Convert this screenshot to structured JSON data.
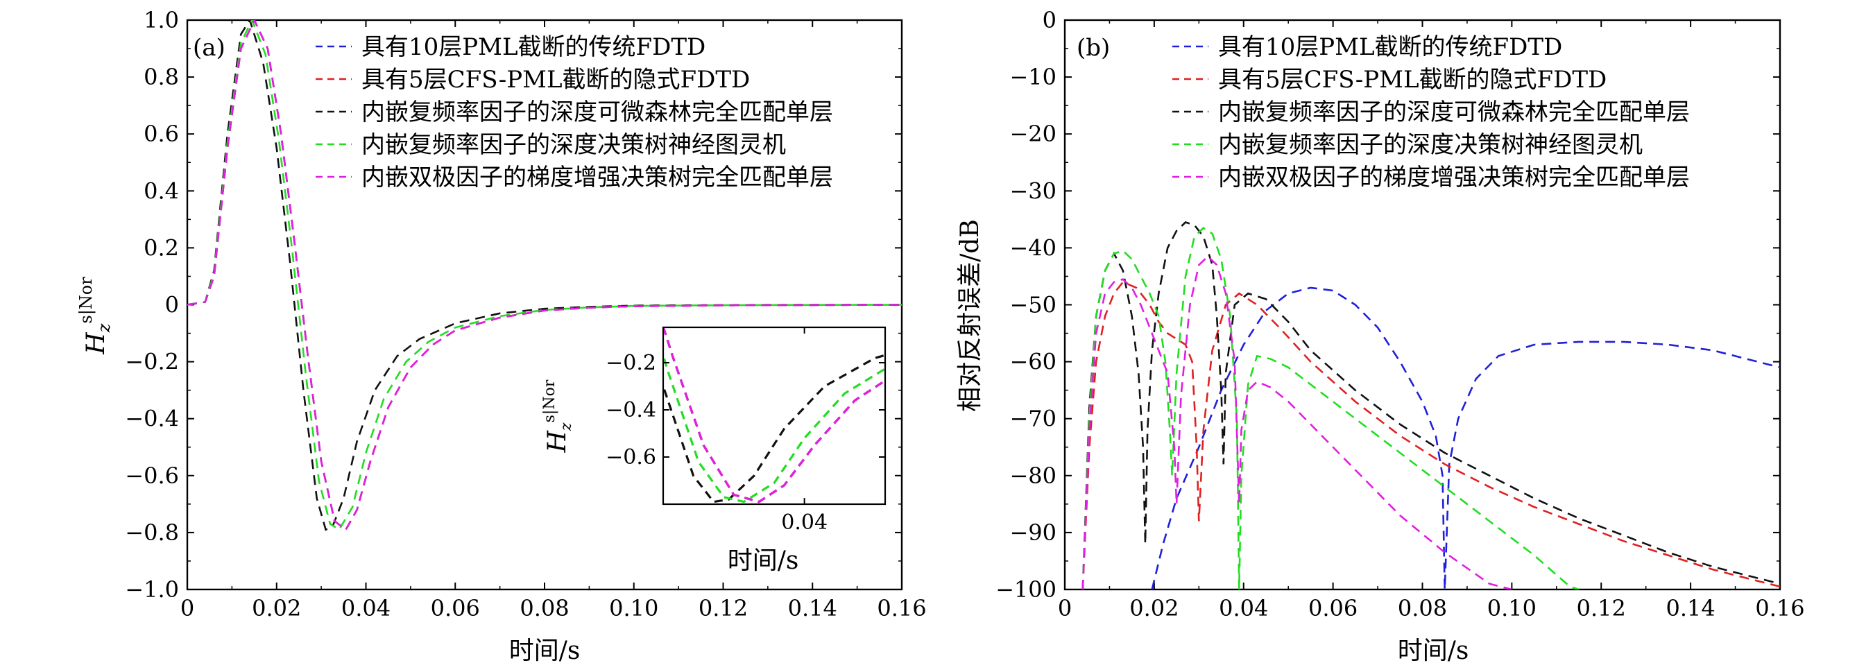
{
  "chart_data": [
    {
      "type": "line",
      "panel_label": "(a)",
      "xlabel": "时间/s",
      "ylabel": {
        "base": "H",
        "sub": "z",
        "sup": "s|Nor"
      },
      "xlim": [
        0,
        0.16
      ],
      "ylim": [
        -1.0,
        1.0
      ],
      "xticks": [
        0,
        0.02,
        0.04,
        0.06,
        0.08,
        0.1,
        0.12,
        0.14,
        0.16
      ],
      "xtick_labels": [
        "0",
        "0.02",
        "0.04",
        "0.06",
        "0.08",
        "0.10",
        "0.12",
        "0.14",
        "0.16"
      ],
      "yticks": [
        -1.0,
        -0.8,
        -0.6,
        -0.4,
        -0.2,
        0,
        0.2,
        0.4,
        0.6,
        0.8,
        1.0
      ],
      "ytick_labels": [
        "−1.0",
        "−0.8",
        "−0.6",
        "−0.4",
        "−0.2",
        "0",
        "0.2",
        "0.4",
        "0.6",
        "0.8",
        "1.0"
      ],
      "legend_position": "top-right",
      "series": [
        {
          "name": "具有10层PML截断的传统FDTD",
          "color": "#1f1fdc",
          "x": [
            0,
            0.004,
            0.006,
            0.009,
            0.012,
            0.015,
            0.018,
            0.021,
            0.024,
            0.027,
            0.03,
            0.033,
            0.0355,
            0.038,
            0.041,
            0.045,
            0.05,
            0.055,
            0.06,
            0.07,
            0.08,
            0.09,
            0.1,
            0.12,
            0.14,
            0.16
          ],
          "y": [
            0,
            0.01,
            0.1,
            0.55,
            0.9,
            1.0,
            0.9,
            0.6,
            0.22,
            -0.18,
            -0.55,
            -0.76,
            -0.79,
            -0.72,
            -0.55,
            -0.36,
            -0.22,
            -0.14,
            -0.09,
            -0.045,
            -0.02,
            -0.01,
            -0.005,
            -0.002,
            -0.001,
            0
          ]
        },
        {
          "name": "具有5层CFS-PML截断的隐式FDTD",
          "color": "#e02020",
          "x": [
            0,
            0.004,
            0.006,
            0.009,
            0.012,
            0.015,
            0.018,
            0.021,
            0.024,
            0.027,
            0.03,
            0.033,
            0.0355,
            0.038,
            0.041,
            0.045,
            0.05,
            0.055,
            0.06,
            0.07,
            0.08,
            0.09,
            0.1,
            0.12,
            0.14,
            0.16
          ],
          "y": [
            0,
            0.01,
            0.1,
            0.55,
            0.9,
            1.0,
            0.9,
            0.6,
            0.22,
            -0.18,
            -0.55,
            -0.76,
            -0.79,
            -0.72,
            -0.55,
            -0.36,
            -0.22,
            -0.14,
            -0.09,
            -0.045,
            -0.02,
            -0.01,
            -0.005,
            -0.002,
            -0.001,
            0
          ]
        },
        {
          "name": "内嵌复频率因子的深度可微森林完全匹配单层",
          "color": "#111111",
          "x": [
            0,
            0.004,
            0.006,
            0.009,
            0.012,
            0.014,
            0.017,
            0.02,
            0.023,
            0.026,
            0.029,
            0.031,
            0.0325,
            0.035,
            0.038,
            0.042,
            0.047,
            0.052,
            0.06,
            0.07,
            0.08,
            0.09,
            0.1,
            0.12,
            0.14,
            0.16
          ],
          "y": [
            0,
            0.01,
            0.12,
            0.6,
            0.95,
            1.0,
            0.85,
            0.55,
            0.15,
            -0.3,
            -0.68,
            -0.79,
            -0.78,
            -0.68,
            -0.48,
            -0.3,
            -0.18,
            -0.12,
            -0.065,
            -0.03,
            -0.014,
            -0.007,
            -0.003,
            -0.001,
            0,
            0
          ]
        },
        {
          "name": "内嵌复频率因子的深度决策树神经图灵机",
          "color": "#22dd22",
          "x": [
            0,
            0.004,
            0.006,
            0.009,
            0.012,
            0.0145,
            0.0175,
            0.0205,
            0.0235,
            0.0265,
            0.0295,
            0.032,
            0.034,
            0.037,
            0.04,
            0.044,
            0.049,
            0.054,
            0.06,
            0.07,
            0.08,
            0.09,
            0.1,
            0.12,
            0.14,
            0.16
          ],
          "y": [
            0,
            0.01,
            0.11,
            0.57,
            0.92,
            1.0,
            0.88,
            0.58,
            0.19,
            -0.24,
            -0.62,
            -0.77,
            -0.79,
            -0.71,
            -0.52,
            -0.33,
            -0.2,
            -0.13,
            -0.08,
            -0.04,
            -0.018,
            -0.009,
            -0.004,
            -0.0015,
            -0.0005,
            0
          ]
        },
        {
          "name": "内嵌双极因子的梯度增强决策树完全匹配单层",
          "color": "#e020e0",
          "x": [
            0,
            0.004,
            0.006,
            0.009,
            0.012,
            0.015,
            0.018,
            0.021,
            0.024,
            0.027,
            0.03,
            0.033,
            0.0355,
            0.038,
            0.041,
            0.045,
            0.05,
            0.055,
            0.06,
            0.07,
            0.08,
            0.09,
            0.1,
            0.12,
            0.14,
            0.16
          ],
          "y": [
            0,
            0.01,
            0.1,
            0.55,
            0.9,
            1.0,
            0.9,
            0.6,
            0.22,
            -0.18,
            -0.55,
            -0.76,
            -0.79,
            -0.72,
            -0.55,
            -0.36,
            -0.22,
            -0.14,
            -0.09,
            -0.045,
            -0.02,
            -0.01,
            -0.005,
            -0.002,
            -0.001,
            0
          ]
        }
      ],
      "inset": {
        "xlim": [
          0.026,
          0.048
        ],
        "ylim": [
          -0.8,
          -0.05
        ],
        "xticks": [
          0.04
        ],
        "xtick_labels": [
          "0.04"
        ],
        "yticks": [
          -0.2,
          -0.4,
          -0.6
        ],
        "ytick_labels": [
          "−0.2",
          "−0.4",
          "−0.6"
        ],
        "xlabel": "时间/s",
        "ylabel": {
          "base": "H",
          "sub": "z",
          "sup": "s|Nor"
        }
      }
    },
    {
      "type": "line",
      "panel_label": "(b)",
      "xlabel": "时间/s",
      "ylabel": "相对反射误差/dB",
      "xlim": [
        0,
        0.16
      ],
      "ylim": [
        -100,
        0
      ],
      "xticks": [
        0,
        0.02,
        0.04,
        0.06,
        0.08,
        0.1,
        0.12,
        0.14,
        0.16
      ],
      "xtick_labels": [
        "0",
        "0.02",
        "0.04",
        "0.06",
        "0.08",
        "0.10",
        "0.12",
        "0.14",
        "0.16"
      ],
      "yticks": [
        -100,
        -90,
        -80,
        -70,
        -60,
        -50,
        -40,
        -30,
        -20,
        -10,
        0
      ],
      "ytick_labels": [
        "−100",
        "−90",
        "−80",
        "−70",
        "−60",
        "−50",
        "−40",
        "−30",
        "−20",
        "−10",
        "0"
      ],
      "legend_position": "top-right",
      "series": [
        {
          "name": "具有10层PML截断的传统FDTD",
          "color": "#1f1fdc",
          "x": [
            0.0195,
            0.022,
            0.025,
            0.03,
            0.035,
            0.04,
            0.045,
            0.05,
            0.055,
            0.06,
            0.065,
            0.07,
            0.075,
            0.08,
            0.083,
            0.0845,
            0.085,
            0.086,
            0.088,
            0.092,
            0.097,
            0.105,
            0.115,
            0.125,
            0.135,
            0.145,
            0.155,
            0.16
          ],
          "y": [
            -100,
            -92,
            -84,
            -75,
            -65,
            -57,
            -51,
            -48,
            -47,
            -47.5,
            -50,
            -54,
            -60,
            -67,
            -73,
            -80,
            -100,
            -78,
            -70,
            -63,
            -59,
            -57,
            -56.5,
            -56.5,
            -57,
            -58,
            -60,
            -61
          ]
        },
        {
          "name": "具有5层CFS-PML截断的隐式FDTD",
          "color": "#e02020",
          "x": [
            0.004,
            0.0055,
            0.007,
            0.009,
            0.011,
            0.013,
            0.016,
            0.019,
            0.021,
            0.023,
            0.025,
            0.027,
            0.0285,
            0.0295,
            0.03,
            0.031,
            0.033,
            0.036,
            0.039,
            0.043,
            0.048,
            0.055,
            0.065,
            0.075,
            0.085,
            0.095,
            0.105,
            0.115,
            0.125,
            0.135,
            0.145,
            0.155,
            0.16
          ],
          "y": [
            -100,
            -75,
            -60,
            -52,
            -48,
            -46,
            -47,
            -50,
            -53,
            -55,
            -56,
            -57,
            -60,
            -75,
            -88,
            -72,
            -58,
            -50,
            -48,
            -50,
            -54,
            -60,
            -67,
            -73,
            -78,
            -82,
            -85.5,
            -88.5,
            -91.5,
            -94,
            -96.5,
            -98.5,
            -99.5
          ]
        },
        {
          "name": "内嵌复频率因子的深度可微森林完全匹配单层",
          "color": "#111111",
          "x": [
            0.004,
            0.0055,
            0.007,
            0.009,
            0.011,
            0.013,
            0.015,
            0.0165,
            0.0175,
            0.018,
            0.0185,
            0.0195,
            0.021,
            0.023,
            0.025,
            0.027,
            0.029,
            0.031,
            0.033,
            0.034,
            0.035,
            0.0355,
            0.036,
            0.038,
            0.041,
            0.045,
            0.05,
            0.055,
            0.065,
            0.075,
            0.085,
            0.095,
            0.105,
            0.115,
            0.125,
            0.135,
            0.145,
            0.155,
            0.16
          ],
          "y": [
            -100,
            -68,
            -52,
            -44,
            -41,
            -44,
            -52,
            -62,
            -75,
            -92,
            -72,
            -58,
            -48,
            -40,
            -37,
            -35.5,
            -36,
            -38,
            -43,
            -52,
            -65,
            -78,
            -62,
            -50,
            -48,
            -49,
            -53,
            -58,
            -65,
            -71,
            -76,
            -80,
            -84,
            -87.5,
            -90.5,
            -93.5,
            -96,
            -98,
            -99
          ]
        },
        {
          "name": "内嵌复频率因子的深度决策树神经图灵机",
          "color": "#22dd22",
          "x": [
            0.004,
            0.0055,
            0.007,
            0.009,
            0.011,
            0.013,
            0.015,
            0.017,
            0.019,
            0.021,
            0.0225,
            0.0235,
            0.024,
            0.025,
            0.027,
            0.029,
            0.031,
            0.033,
            0.035,
            0.037,
            0.0385,
            0.039,
            0.0395,
            0.041,
            0.043,
            0.046,
            0.05,
            0.055,
            0.065,
            0.075,
            0.085,
            0.095,
            0.105,
            0.113,
            0.115
          ],
          "y": [
            -100,
            -70,
            -52,
            -44,
            -41,
            -40.5,
            -42,
            -45,
            -48,
            -52,
            -60,
            -72,
            -80,
            -62,
            -45,
            -38,
            -36.5,
            -37.5,
            -42,
            -52,
            -70,
            -100,
            -80,
            -64,
            -59,
            -59.5,
            -61,
            -64,
            -70,
            -76,
            -82,
            -88,
            -94,
            -99.5,
            -100
          ]
        },
        {
          "name": "内嵌双极因子的梯度增强决策树完全匹配单层",
          "color": "#e020e0",
          "x": [
            0.004,
            0.0055,
            0.007,
            0.009,
            0.011,
            0.013,
            0.015,
            0.017,
            0.019,
            0.021,
            0.023,
            0.0245,
            0.025,
            0.026,
            0.028,
            0.03,
            0.032,
            0.034,
            0.036,
            0.038,
            0.039,
            0.0395,
            0.041,
            0.043,
            0.046,
            0.05,
            0.055,
            0.065,
            0.075,
            0.085,
            0.095,
            0.1
          ],
          "y": [
            -100,
            -72,
            -55,
            -48,
            -46,
            -45.5,
            -47,
            -50,
            -54,
            -58,
            -62,
            -75,
            -85,
            -66,
            -50,
            -43,
            -41.5,
            -43,
            -48,
            -60,
            -85,
            -72,
            -65,
            -63.5,
            -64.5,
            -67,
            -71,
            -79,
            -87,
            -93.5,
            -99,
            -100
          ]
        }
      ]
    }
  ]
}
